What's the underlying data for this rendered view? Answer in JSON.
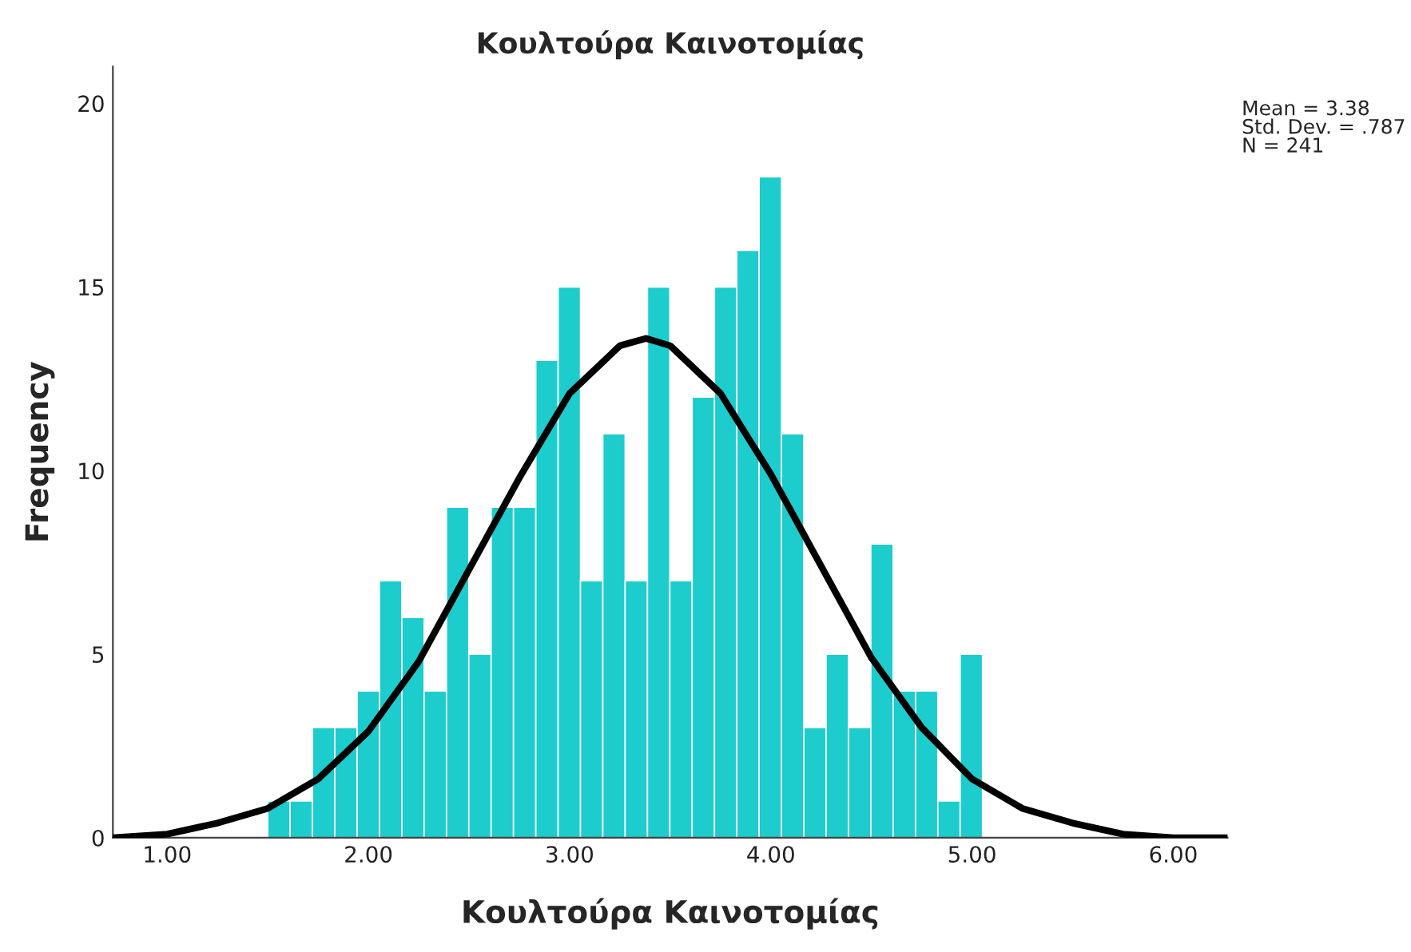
{
  "chart_data": {
    "type": "histogram",
    "title": "Κουλτούρα Καινοτομίας",
    "xlabel": "Κουλτούρα Καινοτομίας",
    "ylabel": "Frequency",
    "bins": [
      1.5,
      1.611,
      1.722,
      1.833,
      1.944,
      2.055,
      2.166,
      2.277,
      2.388,
      2.499,
      2.61,
      2.721,
      2.832,
      2.943,
      3.054,
      3.165,
      3.276,
      3.387,
      3.498,
      3.609,
      3.72,
      3.831,
      3.942,
      4.053,
      4.164,
      4.275,
      4.386,
      4.497,
      4.608,
      4.719,
      4.83,
      4.941,
      5.052
    ],
    "values": [
      1,
      1,
      3,
      3,
      4,
      7,
      6,
      4,
      9,
      5,
      9,
      9,
      13,
      15,
      7,
      11,
      7,
      15,
      7,
      12,
      15,
      16,
      18,
      11,
      3,
      5,
      3,
      8,
      4,
      4,
      1,
      5
    ],
    "color": "#1dcdcd",
    "series": [
      {
        "type": "line",
        "color": "#000000",
        "x": [
          0.73,
          1.0,
          1.25,
          1.5,
          1.75,
          2.0,
          2.25,
          2.5,
          2.75,
          3.0,
          3.25,
          3.38,
          3.5,
          3.75,
          4.0,
          4.25,
          4.5,
          4.75,
          5.0,
          5.25,
          5.5,
          5.75,
          6.0,
          6.27
        ],
        "values": [
          0.0,
          0.1,
          0.4,
          0.8,
          1.6,
          2.9,
          4.8,
          7.3,
          9.8,
          12.1,
          13.4,
          13.6,
          13.4,
          12.1,
          9.9,
          7.4,
          4.9,
          3.0,
          1.6,
          0.8,
          0.4,
          0.1,
          0.0,
          0.0
        ]
      }
    ],
    "xlim": [
      0.73,
      6.27
    ],
    "ylim": [
      0,
      21
    ],
    "xticks": [
      {
        "value": 1,
        "label": "1.00"
      },
      {
        "value": 2,
        "label": "2.00"
      },
      {
        "value": 3,
        "label": "3.00"
      },
      {
        "value": 4,
        "label": "4.00"
      },
      {
        "value": 5,
        "label": "5.00"
      },
      {
        "value": 6,
        "label": "6.00"
      }
    ],
    "yticks": [
      0,
      5,
      10,
      15,
      20
    ],
    "grid": false,
    "legend": false,
    "annotations": [
      "Mean = 3.38\nStd. Dev. = .787\nN = 241"
    ]
  }
}
